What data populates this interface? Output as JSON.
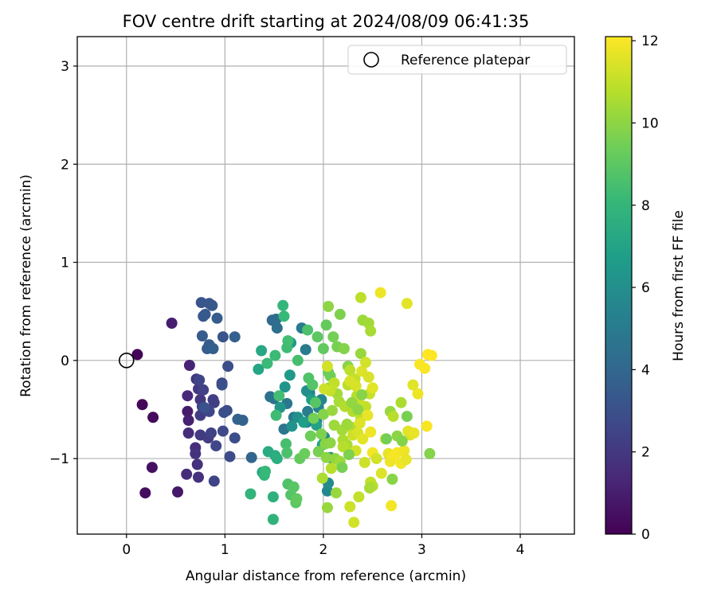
{
  "chart_data": {
    "type": "scatter",
    "title": "FOV centre drift starting at 2024/08/09 06:41:35",
    "xlabel": "Angular distance from reference (arcmin)",
    "ylabel": "Rotation from reference (arcmin)",
    "xlim": [
      -0.5,
      4.55
    ],
    "ylim": [
      -1.77,
      3.3
    ],
    "x_ticks": [
      0,
      1,
      2,
      3,
      4
    ],
    "y_ticks": [
      -1,
      0,
      1,
      2,
      3
    ],
    "x_tick_labels": [
      "0",
      "1",
      "2",
      "3",
      "4"
    ],
    "y_tick_labels": [
      "−1",
      "0",
      "1",
      "2",
      "3"
    ],
    "grid": true,
    "legend": {
      "position": "top-right",
      "label": "Reference platepar"
    },
    "reference_point": {
      "x": 0,
      "y": 0
    },
    "colorbar": {
      "label": "Hours from first FF file",
      "range": [
        0,
        12.1
      ],
      "ticks": [
        0,
        2,
        4,
        6,
        8,
        10,
        12
      ],
      "tick_labels": [
        "0",
        "2",
        "4",
        "6",
        "8",
        "10",
        "12"
      ],
      "colormap": "viridis"
    },
    "colormap_stops": [
      "#440154",
      "#482878",
      "#3e4989",
      "#31688e",
      "#26828e",
      "#1f9e89",
      "#35b779",
      "#6ece58",
      "#b5de2b",
      "#fde725"
    ],
    "point_columns": [
      "x",
      "y",
      "hours"
    ],
    "points": [
      [
        0.11,
        0.06,
        0.1
      ],
      [
        0.16,
        -0.45,
        0.2
      ],
      [
        0.27,
        -0.58,
        0.3
      ],
      [
        0.19,
        -1.35,
        0.4
      ],
      [
        0.26,
        -1.09,
        0.5
      ],
      [
        0.52,
        -1.34,
        0.8
      ],
      [
        0.46,
        0.38,
        1.0
      ],
      [
        0.62,
        -0.52,
        0.9
      ],
      [
        0.63,
        -0.61,
        1.1
      ],
      [
        0.64,
        -0.05,
        1.2
      ],
      [
        0.62,
        -0.36,
        1.4
      ],
      [
        0.63,
        -0.74,
        1.5
      ],
      [
        0.61,
        -1.16,
        1.5
      ],
      [
        0.7,
        -0.89,
        1.6
      ],
      [
        0.72,
        -1.06,
        1.7
      ],
      [
        0.73,
        -1.19,
        1.7
      ],
      [
        0.7,
        -0.95,
        1.8
      ],
      [
        0.71,
        -0.19,
        1.9
      ],
      [
        0.73,
        -0.29,
        2.0
      ],
      [
        0.75,
        -0.4,
        2.0
      ],
      [
        0.77,
        -0.47,
        2.1
      ],
      [
        0.75,
        -0.76,
        2.1
      ],
      [
        0.75,
        -0.56,
        2.2
      ],
      [
        0.83,
        -0.79,
        2.2
      ],
      [
        0.88,
        -0.4,
        2.3
      ],
      [
        0.89,
        -0.43,
        2.3
      ],
      [
        0.86,
        -0.74,
        2.4
      ],
      [
        0.78,
        -0.3,
        2.4
      ],
      [
        0.74,
        -0.2,
        2.5
      ],
      [
        0.89,
        -1.23,
        2.5
      ],
      [
        0.84,
        -0.52,
        2.6
      ],
      [
        0.91,
        -0.87,
        2.6
      ],
      [
        0.98,
        -0.72,
        2.7
      ],
      [
        0.97,
        -0.23,
        2.7
      ],
      [
        1.02,
        -0.51,
        2.8
      ],
      [
        1.03,
        -0.06,
        2.9
      ],
      [
        1.05,
        -0.98,
        2.8
      ],
      [
        1.1,
        -0.79,
        2.9
      ],
      [
        0.99,
        -0.53,
        3.0
      ],
      [
        0.97,
        -0.25,
        3.0
      ],
      [
        0.79,
        -0.48,
        3.1
      ],
      [
        0.98,
        0.24,
        3.2
      ],
      [
        0.76,
        0.59,
        3.2
      ],
      [
        0.84,
        0.58,
        3.3
      ],
      [
        0.87,
        0.56,
        3.3
      ],
      [
        0.78,
        0.45,
        3.4
      ],
      [
        0.8,
        0.47,
        3.4
      ],
      [
        0.92,
        0.43,
        3.5
      ],
      [
        0.77,
        0.25,
        3.5
      ],
      [
        0.84,
        0.16,
        3.6
      ],
      [
        0.82,
        0.12,
        3.6
      ],
      [
        0.88,
        0.12,
        3.7
      ],
      [
        1.1,
        0.24,
        3.7
      ],
      [
        1.13,
        -0.6,
        3.8
      ],
      [
        1.18,
        -0.61,
        3.8
      ],
      [
        1.27,
        -0.99,
        3.9
      ],
      [
        1.48,
        0.41,
        4.2
      ],
      [
        1.52,
        0.42,
        4.3
      ],
      [
        1.53,
        0.33,
        4.4
      ],
      [
        1.46,
        -0.37,
        4.5
      ],
      [
        1.5,
        -0.39,
        4.6
      ],
      [
        1.6,
        -0.7,
        4.7
      ],
      [
        1.63,
        -0.44,
        4.8
      ],
      [
        1.7,
        -0.58,
        4.9
      ],
      [
        1.78,
        0.33,
        5.0
      ],
      [
        1.82,
        0.11,
        5.0
      ],
      [
        1.84,
        -0.52,
        5.1
      ],
      [
        1.83,
        -0.63,
        5.2
      ],
      [
        1.86,
        -0.33,
        5.3
      ],
      [
        1.93,
        -0.62,
        5.3
      ],
      [
        1.95,
        -0.48,
        5.4
      ],
      [
        1.98,
        -0.4,
        5.5
      ],
      [
        2.01,
        -0.78,
        5.6
      ],
      [
        2.04,
        -1.33,
        5.7
      ],
      [
        2.05,
        -1.25,
        5.8
      ],
      [
        2.07,
        -0.99,
        5.9
      ],
      [
        1.83,
        -0.31,
        6.0
      ],
      [
        1.74,
        -0.58,
        6.1
      ],
      [
        1.68,
        -0.67,
        6.2
      ],
      [
        1.61,
        -0.27,
        6.3
      ],
      [
        1.56,
        -0.48,
        6.4
      ],
      [
        1.66,
        -0.15,
        6.5
      ],
      [
        1.67,
        0.18,
        6.6
      ],
      [
        1.8,
        -0.63,
        6.7
      ],
      [
        1.88,
        -0.4,
        6.8
      ],
      [
        1.93,
        -0.66,
        6.9
      ],
      [
        1.99,
        -0.86,
        7.0
      ],
      [
        1.34,
        -0.09,
        7.1
      ],
      [
        1.37,
        0.1,
        7.2
      ],
      [
        1.38,
        -1.14,
        7.3
      ],
      [
        1.44,
        -0.93,
        7.4
      ],
      [
        1.51,
        -0.97,
        7.5
      ],
      [
        1.53,
        -1.0,
        7.6
      ],
      [
        1.49,
        -1.39,
        7.7
      ],
      [
        1.49,
        -1.62,
        7.8
      ],
      [
        1.26,
        -1.36,
        7.9
      ],
      [
        1.4,
        -1.17,
        8.0
      ],
      [
        1.41,
        -1.13,
        8.1
      ],
      [
        1.51,
        0.05,
        8.2
      ],
      [
        1.52,
        -0.56,
        8.3
      ],
      [
        1.55,
        -0.36,
        8.4
      ],
      [
        1.62,
        -0.85,
        8.5
      ],
      [
        1.63,
        -0.94,
        8.6
      ],
      [
        1.64,
        -1.26,
        8.7
      ],
      [
        1.67,
        -1.37,
        8.8
      ],
      [
        1.7,
        -1.29,
        8.9
      ],
      [
        1.72,
        -1.45,
        9.0
      ],
      [
        1.73,
        -1.41,
        9.1
      ],
      [
        1.76,
        -1.0,
        9.2
      ],
      [
        1.81,
        -0.95,
        9.3
      ],
      [
        1.87,
        -0.77,
        9.4
      ],
      [
        1.9,
        -0.59,
        9.5
      ],
      [
        1.95,
        -0.93,
        9.6
      ],
      [
        1.98,
        -0.75,
        9.7
      ],
      [
        2.0,
        -0.55,
        9.8
      ],
      [
        2.02,
        -0.85,
        9.9
      ],
      [
        1.59,
        0.56,
        8.0
      ],
      [
        1.6,
        0.45,
        8.1
      ],
      [
        1.43,
        -0.03,
        8.2
      ],
      [
        1.63,
        0.13,
        8.3
      ],
      [
        1.64,
        0.2,
        8.4
      ],
      [
        1.74,
        0.0,
        8.5
      ],
      [
        1.84,
        0.31,
        8.6
      ],
      [
        1.85,
        -0.18,
        8.7
      ],
      [
        1.89,
        -0.25,
        8.8
      ],
      [
        1.92,
        -0.43,
        8.9
      ],
      [
        1.94,
        0.24,
        9.0
      ],
      [
        2.0,
        0.12,
        9.1
      ],
      [
        2.03,
        0.36,
        9.2
      ],
      [
        2.05,
        -0.12,
        9.3
      ],
      [
        2.07,
        -0.16,
        9.4
      ],
      [
        2.1,
        0.24,
        9.5
      ],
      [
        2.14,
        0.14,
        9.6
      ],
      [
        2.17,
        0.47,
        9.7
      ],
      [
        2.21,
        0.12,
        9.8
      ],
      [
        2.25,
        -0.06,
        9.9
      ],
      [
        2.03,
        -0.99,
        10.0
      ],
      [
        2.07,
        -0.84,
        10.0
      ],
      [
        2.12,
        -1.0,
        10.1
      ],
      [
        2.13,
        -1.35,
        10.2
      ],
      [
        2.17,
        -1.03,
        10.3
      ],
      [
        2.19,
        -0.71,
        10.4
      ],
      [
        2.24,
        -0.86,
        10.5
      ],
      [
        2.28,
        -0.68,
        10.6
      ],
      [
        2.3,
        -0.52,
        10.7
      ],
      [
        2.34,
        -0.36,
        10.8
      ],
      [
        2.38,
        -0.59,
        10.9
      ],
      [
        2.43,
        -0.47,
        11.0
      ],
      [
        2.47,
        -0.34,
        11.1
      ],
      [
        2.05,
        0.55,
        10.0
      ],
      [
        2.06,
        -0.28,
        10.1
      ],
      [
        2.09,
        -0.51,
        10.2
      ],
      [
        2.11,
        -0.66,
        10.3
      ],
      [
        2.14,
        -0.34,
        10.4
      ],
      [
        2.16,
        -0.42,
        10.5
      ],
      [
        2.2,
        -0.81,
        10.6
      ],
      [
        2.22,
        -0.47,
        10.7
      ],
      [
        2.25,
        -0.25,
        10.8
      ],
      [
        2.27,
        -0.1,
        10.9
      ],
      [
        2.32,
        -0.19,
        11.0
      ],
      [
        2.36,
        -0.42,
        11.1
      ],
      [
        2.38,
        0.07,
        10.2
      ],
      [
        2.4,
        0.41,
        10.3
      ],
      [
        2.46,
        0.38,
        10.4
      ],
      [
        2.48,
        0.3,
        10.5
      ],
      [
        2.38,
        0.64,
        10.9
      ],
      [
        2.58,
        0.69,
        11.8
      ],
      [
        2.85,
        0.58,
        11.6
      ],
      [
        2.2,
        -0.88,
        10.8
      ],
      [
        2.26,
        -0.95,
        11.0
      ],
      [
        2.3,
        -0.76,
        11.2
      ],
      [
        2.33,
        -0.92,
        11.3
      ],
      [
        2.35,
        -0.74,
        11.4
      ],
      [
        2.37,
        -0.64,
        11.5
      ],
      [
        2.4,
        -0.8,
        11.6
      ],
      [
        2.45,
        -0.56,
        11.7
      ],
      [
        2.48,
        -0.73,
        11.8
      ],
      [
        2.5,
        -0.94,
        11.9
      ],
      [
        2.42,
        -1.04,
        11.2
      ],
      [
        2.48,
        -1.24,
        11.0
      ],
      [
        2.5,
        -1.28,
        10.8
      ],
      [
        2.54,
        -1.0,
        11.3
      ],
      [
        2.59,
        -1.15,
        11.5
      ],
      [
        2.63,
        -0.8,
        11.6
      ],
      [
        2.66,
        -0.95,
        11.7
      ],
      [
        2.68,
        -1.03,
        11.8
      ],
      [
        2.71,
        -0.97,
        11.9
      ],
      [
        2.75,
        -0.94,
        12.0
      ],
      [
        2.79,
        -1.05,
        11.9
      ],
      [
        2.82,
        -0.92,
        11.8
      ],
      [
        2.84,
        -1.01,
        11.7
      ],
      [
        2.86,
        -0.72,
        11.6
      ],
      [
        2.88,
        -0.76,
        11.5
      ],
      [
        2.92,
        -0.74,
        11.7
      ],
      [
        2.96,
        -0.34,
        11.8
      ],
      [
        2.98,
        -0.04,
        12.0
      ],
      [
        3.03,
        -0.08,
        12.0
      ],
      [
        3.06,
        0.06,
        12.1
      ],
      [
        3.1,
        0.05,
        12.1
      ],
      [
        3.05,
        -0.67,
        12.0
      ],
      [
        2.91,
        -0.25,
        11.6
      ],
      [
        2.79,
        -0.43,
        10.6
      ],
      [
        2.68,
        -0.52,
        10.2
      ],
      [
        2.71,
        -0.57,
        10.8
      ],
      [
        2.75,
        -0.77,
        10.0
      ],
      [
        2.8,
        -0.82,
        9.8
      ],
      [
        2.85,
        -0.57,
        9.6
      ],
      [
        2.64,
        -0.8,
        9.5
      ],
      [
        3.08,
        -0.95,
        9.8
      ],
      [
        2.7,
        -1.21,
        9.9
      ],
      [
        2.47,
        -1.3,
        10.5
      ],
      [
        2.36,
        -1.39,
        11.0
      ],
      [
        2.27,
        -1.49,
        11.2
      ],
      [
        2.31,
        -1.65,
        11.3
      ],
      [
        2.69,
        -1.48,
        11.9
      ],
      [
        2.04,
        -1.5,
        10.2
      ],
      [
        1.99,
        -1.2,
        10.6
      ],
      [
        2.08,
        -1.1,
        10.8
      ],
      [
        2.19,
        -1.09,
        9.6
      ],
      [
        2.26,
        -0.96,
        9.7
      ],
      [
        2.33,
        -0.26,
        11.4
      ],
      [
        2.39,
        -0.11,
        11.5
      ],
      [
        2.43,
        -0.02,
        11.3
      ],
      [
        2.46,
        -0.17,
        11.4
      ],
      [
        2.5,
        -0.28,
        11.6
      ],
      [
        2.11,
        -0.23,
        11.0
      ],
      [
        2.07,
        -0.31,
        11.1
      ],
      [
        2.01,
        -0.29,
        11.2
      ],
      [
        2.04,
        -0.06,
        11.3
      ],
      [
        2.27,
        -0.21,
        11.4
      ],
      [
        2.24,
        -0.65,
        10.3
      ],
      [
        2.29,
        -0.43,
        10.1
      ],
      [
        2.35,
        -0.5,
        10.0
      ],
      [
        2.39,
        -0.35,
        9.9
      ]
    ]
  }
}
